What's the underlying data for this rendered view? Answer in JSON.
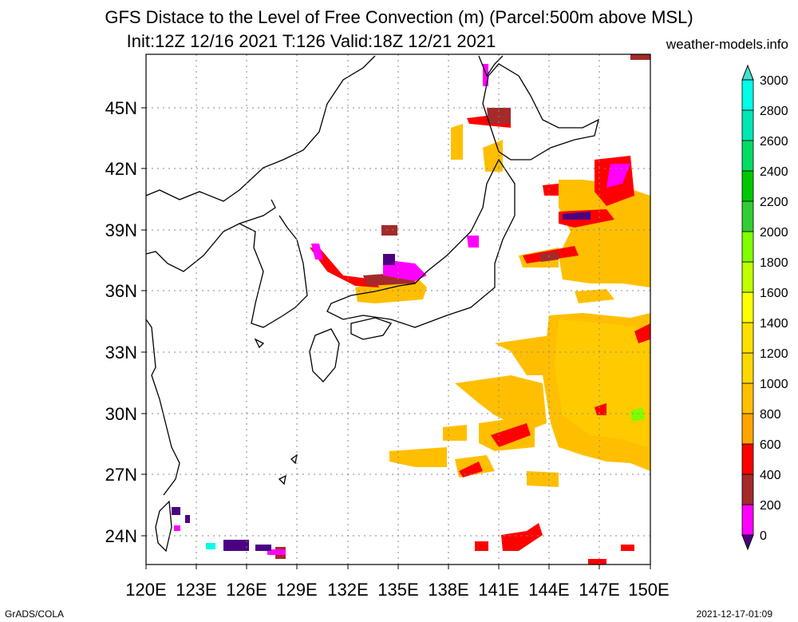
{
  "title_line1": "GFS Distace to the Level of Free Convection (m) (Parcel:500m above MSL)",
  "title_line2": "Init:12Z 12/16 2021 T:126 Valid:18Z 12/21 2021",
  "credit_site": "weather-models.info",
  "credit_tool": "GrADS/COLA",
  "timestamp": "2021-12-17-01:09",
  "lat_ticks": [
    "45N",
    "42N",
    "39N",
    "36N",
    "33N",
    "30N",
    "27N",
    "24N"
  ],
  "lon_ticks": [
    "120E",
    "123E",
    "126E",
    "129E",
    "132E",
    "135E",
    "138E",
    "141E",
    "144E",
    "147E",
    "150E"
  ],
  "colorbar": {
    "labels": [
      "0",
      "200",
      "400",
      "600",
      "800",
      "1000",
      "1200",
      "1400",
      "1600",
      "1800",
      "2000",
      "2200",
      "2400",
      "2600",
      "2800",
      "3000"
    ],
    "colors": [
      "#4b0082",
      "#ff00ff",
      "#a52a2a",
      "#ff0000",
      "#ffa500",
      "#ffbf00",
      "#ffd700",
      "#ffe000",
      "#ffff00",
      "#bfff00",
      "#7fff00",
      "#32cd32",
      "#00c800",
      "#00dc64",
      "#00e6b4",
      "#00ffe6",
      "#40e0d0"
    ]
  }
}
